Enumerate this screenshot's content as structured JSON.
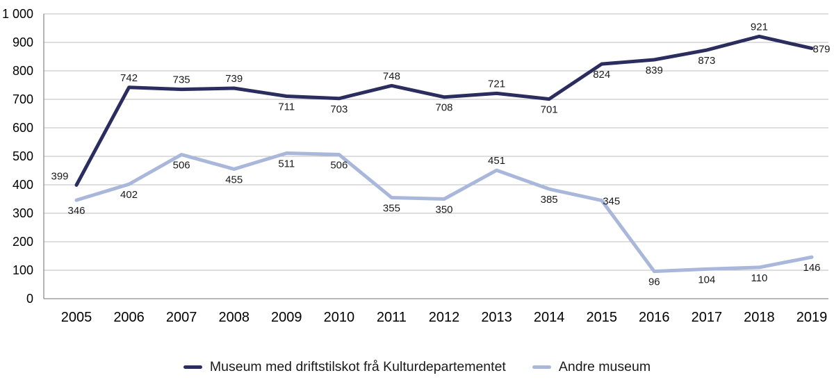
{
  "chart_data": {
    "type": "line",
    "x": [
      "2005",
      "2006",
      "2007",
      "2008",
      "2009",
      "2010",
      "2011",
      "2012",
      "2013",
      "2014",
      "2015",
      "2016",
      "2017",
      "2018",
      "2019"
    ],
    "series": [
      {
        "name": "Museum med driftstilskot frå Kulturdepartementet",
        "color": "#2b2d5e",
        "values": [
          399,
          742,
          735,
          739,
          711,
          703,
          748,
          708,
          721,
          701,
          824,
          839,
          873,
          921,
          879
        ],
        "label_positions": [
          "above-left",
          "above",
          "above",
          "above",
          "below",
          "below",
          "above",
          "below",
          "above",
          "below",
          "below",
          "below",
          "below",
          "above",
          "right"
        ]
      },
      {
        "name": "Andre museum",
        "color": "#a9b7db",
        "values": [
          346,
          402,
          506,
          455,
          511,
          506,
          355,
          350,
          451,
          385,
          345,
          96,
          104,
          110,
          146
        ],
        "label_positions": [
          "below",
          "below",
          "below",
          "below",
          "below",
          "below",
          "below",
          "below",
          "above",
          "below",
          "right",
          "below",
          "below",
          "below",
          "below"
        ]
      }
    ],
    "title": "",
    "xlabel": "",
    "ylabel": "",
    "ylim": [
      0,
      1000
    ],
    "ytick_step": 100,
    "ytick_labels": [
      "0",
      "100",
      "200",
      "300",
      "400",
      "500",
      "600",
      "700",
      "800",
      "900",
      "1 000"
    ],
    "grid": true,
    "show_point_labels": true,
    "legend_position": "bottom",
    "colors": {
      "grid": "#bdbdbd",
      "axis": "#8c8c8c",
      "text": "#000000",
      "value_label": "#1a1a1a"
    }
  }
}
